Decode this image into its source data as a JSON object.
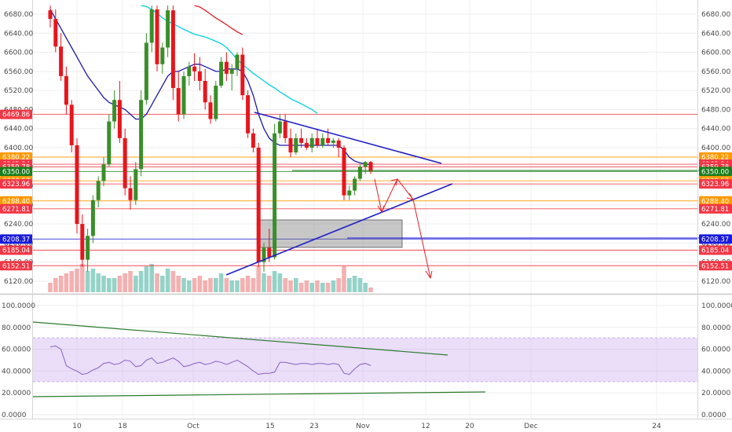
{
  "chart_data": [
    {
      "type": "candlestick",
      "panel": "price",
      "y_ticks": [
        "6680.00",
        "6640.00",
        "6600.00",
        "6560.00",
        "6520.00",
        "6480.00",
        "6440.00",
        "6400.00",
        "6360.00",
        "6320.00",
        "6280.00",
        "6240.00",
        "6200.00",
        "6160.00",
        "6120.00"
      ],
      "x_ticks": [
        "10",
        "18",
        "Oct",
        "15",
        "23",
        "Nov",
        "12",
        "20",
        "Dec",
        "24"
      ],
      "ylim": [
        6108,
        6698
      ],
      "candles": [
        [
          6688,
          6698,
          6652,
          6670
        ],
        [
          6670,
          6690,
          6600,
          6612
        ],
        [
          6612,
          6640,
          6540,
          6550
        ],
        [
          6550,
          6570,
          6470,
          6490
        ],
        [
          6490,
          6500,
          6390,
          6405
        ],
        [
          6405,
          6420,
          6220,
          6240
        ],
        [
          6240,
          6260,
          6150,
          6165
        ],
        [
          6165,
          6230,
          6140,
          6215
        ],
        [
          6215,
          6300,
          6200,
          6290
        ],
        [
          6290,
          6340,
          6275,
          6330
        ],
        [
          6330,
          6380,
          6320,
          6365
        ],
        [
          6365,
          6470,
          6360,
          6455
        ],
        [
          6455,
          6520,
          6440,
          6500
        ],
        [
          6500,
          6540,
          6410,
          6420
        ],
        [
          6420,
          6440,
          6300,
          6315
        ],
        [
          6315,
          6340,
          6270,
          6290
        ],
        [
          6290,
          6370,
          6280,
          6355
        ],
        [
          6355,
          6520,
          6340,
          6500
        ],
        [
          6500,
          6640,
          6490,
          6620
        ],
        [
          6620,
          6698,
          6600,
          6690
        ],
        [
          6690,
          6698,
          6560,
          6575
        ],
        [
          6575,
          6620,
          6555,
          6610
        ],
        [
          6610,
          6698,
          6590,
          6688
        ],
        [
          6688,
          6698,
          6500,
          6525
        ],
        [
          6525,
          6560,
          6455,
          6470
        ],
        [
          6470,
          6560,
          6460,
          6550
        ],
        [
          6550,
          6580,
          6530,
          6570
        ],
        [
          6570,
          6598,
          6540,
          6560
        ],
        [
          6560,
          6590,
          6520,
          6540
        ],
        [
          6540,
          6565,
          6480,
          6495
        ],
        [
          6495,
          6510,
          6450,
          6460
        ],
        [
          6460,
          6540,
          6455,
          6530
        ],
        [
          6530,
          6590,
          6525,
          6580
        ],
        [
          6580,
          6600,
          6540,
          6555
        ],
        [
          6555,
          6575,
          6520,
          6565
        ],
        [
          6565,
          6600,
          6550,
          6595
        ],
        [
          6595,
          6610,
          6500,
          6510
        ],
        [
          6510,
          6520,
          6420,
          6430
        ],
        [
          6430,
          6440,
          6390,
          6400
        ],
        [
          6400,
          6410,
          6150,
          6160
        ],
        [
          6160,
          6200,
          6140,
          6190
        ],
        [
          6190,
          6230,
          6160,
          6170
        ],
        [
          6170,
          6450,
          6165,
          6430
        ],
        [
          6430,
          6470,
          6420,
          6455
        ],
        [
          6455,
          6470,
          6410,
          6420
        ],
        [
          6420,
          6440,
          6380,
          6390
        ],
        [
          6390,
          6430,
          6385,
          6420
        ],
        [
          6420,
          6440,
          6400,
          6410
        ],
        [
          6410,
          6420,
          6395,
          6400
        ],
        [
          6400,
          6430,
          6390,
          6420
        ],
        [
          6420,
          6440,
          6400,
          6405
        ],
        [
          6405,
          6430,
          6400,
          6420
        ],
        [
          6420,
          6440,
          6405,
          6410
        ],
        [
          6410,
          6420,
          6400,
          6415
        ],
        [
          6415,
          6420,
          6380,
          6400
        ],
        [
          6400,
          6405,
          6290,
          6300
        ],
        [
          6300,
          6320,
          6290,
          6310
        ],
        [
          6310,
          6340,
          6300,
          6335
        ],
        [
          6335,
          6365,
          6330,
          6360
        ],
        [
          6360,
          6372,
          6345,
          6370
        ],
        [
          6370,
          6372,
          6345,
          6350
        ]
      ],
      "volume": [
        0.2,
        0.3,
        0.35,
        0.4,
        0.45,
        0.5,
        0.6,
        0.45,
        0.5,
        0.4,
        0.35,
        0.3,
        0.3,
        0.35,
        0.4,
        0.45,
        0.35,
        0.45,
        0.55,
        0.6,
        0.4,
        0.35,
        0.5,
        0.45,
        0.35,
        0.3,
        0.25,
        0.3,
        0.35,
        0.25,
        0.3,
        0.3,
        0.4,
        0.3,
        0.25,
        0.25,
        0.3,
        0.35,
        0.3,
        0.55,
        0.4,
        0.35,
        0.45,
        0.4,
        0.3,
        0.25,
        0.3,
        0.2,
        0.25,
        0.2,
        0.25,
        0.2,
        0.2,
        0.25,
        0.3,
        0.55,
        0.3,
        0.35,
        0.3,
        0.2,
        0.1
      ],
      "moving_averages": [
        {
          "color": "#1a1aa6",
          "values": [
            6690,
            6670,
            6650,
            6630,
            6610,
            6590,
            6570,
            6550,
            6535,
            6520,
            6505,
            6495,
            6490,
            6485,
            6480,
            6470,
            6460,
            6460,
            6470,
            6490,
            6510,
            6530,
            6550,
            6560,
            6560,
            6565,
            6570,
            6575,
            6575,
            6570,
            6565,
            6560,
            6560,
            6565,
            6565,
            6565,
            6560,
            6540,
            6510,
            6470,
            6440,
            6420,
            6410,
            6405,
            6405,
            6405,
            6405,
            6405,
            6405,
            6405,
            6405,
            6405,
            6405,
            6405,
            6405,
            6395,
            6380,
            6372,
            6368,
            6366,
            6364
          ]
        },
        {
          "color": "#00cfe0",
          "start": 17,
          "values": [
            6698,
            6696,
            6690,
            6682,
            6672,
            6665,
            6660,
            6654,
            6648,
            6643,
            6638,
            6635,
            6632,
            6628,
            6623,
            6618,
            6610,
            6598,
            6585,
            6575,
            6565,
            6556,
            6548,
            6540,
            6532,
            6525,
            6517,
            6510,
            6503,
            6497,
            6492,
            6486,
            6480,
            6472
          ]
        },
        {
          "color": "#e0202a",
          "start": 27,
          "values": [
            6698,
            6695,
            6688,
            6680,
            6672,
            6665,
            6658,
            6650,
            6643,
            6637
          ]
        }
      ],
      "price_tags": [
        {
          "label": "6469.86",
          "value": 6469.86,
          "color": "#f23645",
          "side": "left"
        },
        {
          "label": "6380.22",
          "value": 6380.22,
          "color": "#ff9800",
          "side": "both"
        },
        {
          "label": "6365.34",
          "value": 6365.34,
          "color": "#f23645",
          "side": "both"
        },
        {
          "label": "6359.78",
          "value": 6359.78,
          "color": "#f23645",
          "side": "both"
        },
        {
          "label": "6350.00",
          "value": 6350.0,
          "color": "#1b7d1b",
          "side": "both"
        },
        {
          "label": "6330.57",
          "value": 6330.57,
          "color": "#ff9800",
          "side": "both"
        },
        {
          "label": "6323.96",
          "value": 6323.96,
          "color": "#f23645",
          "side": "both"
        },
        {
          "label": "6288.40",
          "value": 6288.4,
          "color": "#ff9800",
          "side": "both"
        },
        {
          "label": "6271.81",
          "value": 6271.81,
          "color": "#f23645",
          "side": "both"
        },
        {
          "label": "6208.37",
          "value": 6208.37,
          "color": "#1a1adb",
          "side": "both"
        },
        {
          "label": "6185.04",
          "value": 6185.04,
          "color": "#f23645",
          "side": "both"
        },
        {
          "label": "6152.51",
          "value": 6152.51,
          "color": "#f23645",
          "side": "both"
        }
      ]
    },
    {
      "type": "line",
      "panel": "oscillator",
      "y_ticks": [
        "100.0000",
        "80.0000",
        "60.0000",
        "40.0000",
        "20.0000",
        "0.0000"
      ],
      "ylim": [
        -2,
        102
      ],
      "band": [
        30,
        70
      ],
      "series": [
        {
          "color": "#8a5fc0",
          "values": [
            62,
            63,
            60,
            45,
            42,
            40,
            37,
            38,
            41,
            43,
            47,
            48,
            46,
            47,
            50,
            49,
            44,
            45,
            50,
            52,
            47,
            48,
            50,
            52,
            49,
            44,
            45,
            47,
            48,
            46,
            47,
            49,
            48,
            46,
            48,
            50,
            47,
            44,
            40,
            37,
            38,
            38,
            39,
            48,
            48,
            47,
            46,
            47,
            47,
            46,
            47,
            47,
            46,
            47,
            46,
            38,
            37,
            42,
            46,
            47,
            45
          ]
        }
      ]
    }
  ]
}
